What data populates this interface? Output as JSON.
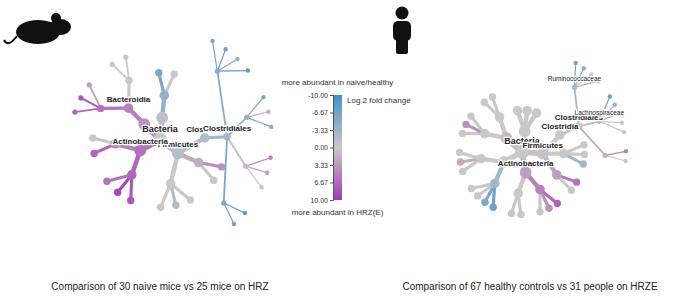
{
  "chart_data": {
    "type": "heat_tree",
    "color_scale": {
      "title": "Log 2 fold change",
      "range": [
        -10,
        10
      ],
      "ticks": [
        {
          "value": -10,
          "label": "-10.00"
        },
        {
          "value": -6.67,
          "label": "-6.67"
        },
        {
          "value": -3.33,
          "label": "-3.33"
        },
        {
          "value": 0,
          "label": "0.00"
        },
        {
          "value": 3.33,
          "label": "3.33"
        },
        {
          "value": 6.67,
          "label": "6.67"
        },
        {
          "value": 10,
          "label": "10.00"
        }
      ],
      "colors": [
        "#4a8fc6",
        "#c8c8c8",
        "#a33cb3"
      ],
      "low_label": "more abundant in naive/healthy",
      "high_label": "more abundant in HRZ(E)"
    },
    "panels": [
      {
        "caption": "Comparison of 30 naive mice vs 25 mice on HRZ",
        "tree": {
          "label": "Bacteria",
          "value": 0,
          "children": [
            {
              "label": "Firmicutes",
              "value": -1.5,
              "children": [
                {
                  "label": "Clostridia",
                  "value": -2,
                  "children": [
                    {
                      "label": "Clostridiales",
                      "value": -3,
                      "children": [
                        {
                          "value": -5,
                          "children": [
                            {
                              "value": -6
                            },
                            {
                              "value": -7
                            },
                            {
                              "value": -4
                            },
                            {
                              "value": -8
                            }
                          ]
                        },
                        {
                          "value": -4,
                          "children": [
                            {
                              "value": -6
                            },
                            {
                              "value": 2
                            },
                            {
                              "value": -5
                            }
                          ]
                        },
                        {
                          "value": 1,
                          "children": [
                            {
                              "value": 5
                            },
                            {
                              "value": 3
                            },
                            {
                              "value": 0
                            }
                          ]
                        },
                        {
                          "value": -6,
                          "children": [
                            {
                              "value": -8
                            },
                            {
                              "value": -7
                            }
                          ]
                        }
                      ]
                    }
                  ]
                },
                {
                  "value": 2,
                  "children": [
                    {
                      "value": 4
                    },
                    {
                      "value": 0
                    }
                  ]
                },
                {
                  "value": 0,
                  "children": [
                    {
                      "value": 0
                    },
                    {
                      "value": -2
                    },
                    {
                      "value": 0
                    }
                  ]
                }
              ]
            },
            {
              "label": "Actinobacteria",
              "value": 6,
              "children": [
                {
                  "value": 7,
                  "children": [
                    {
                      "value": 8
                    },
                    {
                      "value": 9
                    },
                    {
                      "value": 6
                    }
                  ]
                },
                {
                  "value": 5,
                  "children": [
                    {
                      "value": 7
                    },
                    {
                      "value": 0
                    }
                  ]
                }
              ]
            },
            {
              "value": 4,
              "children": [
                {
                  "label": "Bacteroidia",
                  "value": 5,
                  "children": [
                    {
                      "value": 6,
                      "children": [
                        {
                          "value": 7
                        },
                        {
                          "value": 8
                        },
                        {
                          "value": 3
                        }
                      ]
                    },
                    {
                      "value": 0,
                      "children": [
                        {
                          "value": 0
                        },
                        {
                          "value": 0
                        }
                      ]
                    }
                  ]
                }
              ]
            },
            {
              "value": -1,
              "children": [
                {
                  "value": -4,
                  "children": [
                    {
                      "value": -6
                    },
                    {
                      "value": 0
                    }
                  ]
                }
              ]
            }
          ]
        }
      },
      {
        "caption": "Comparison of 67 healthy controls vs 31 people on HRZE",
        "tree": {
          "label": "Bacteria",
          "value": 0,
          "children": [
            {
              "label": "Firmicutes",
              "value": 0.5,
              "children": [
                {
                  "label": "Clostridia",
                  "value": 0,
                  "children": [
                    {
                      "label": "Clostridiales",
                      "value": -1,
                      "children": [
                        {
                          "label": "Ruminococcaceae",
                          "value": -3,
                          "children": [
                            {
                              "value": -6
                            },
                            {
                              "value": -5
                            },
                            {
                              "value": 0
                            },
                            {
                              "value": 2
                            }
                          ]
                        },
                        {
                          "label": "Lachnospiraceae",
                          "value": -2,
                          "children": [
                            {
                              "value": -7
                            },
                            {
                              "value": -4
                            },
                            {
                              "value": 3
                            },
                            {
                              "value": 0
                            },
                            {
                              "value": 0
                            }
                          ]
                        },
                        {
                          "value": 2,
                          "children": [
                            {
                              "value": 5
                            },
                            {
                              "value": 0
                            }
                          ]
                        }
                      ]
                    }
                  ]
                },
                {
                  "value": 0,
                  "children": [
                    {
                      "value": 0
                    },
                    {
                      "value": 0
                    },
                    {
                      "value": -3
                    }
                  ]
                },
                {
                  "value": 3,
                  "children": [
                    {
                      "value": 6
                    },
                    {
                      "value": 0
                    }
                  ]
                }
              ]
            },
            {
              "label": "Actinobacteria",
              "value": 3,
              "children": [
                {
                  "value": 5,
                  "children": [
                    {
                      "value": 7
                    },
                    {
                      "value": 4
                    },
                    {
                      "value": 0
                    }
                  ]
                },
                {
                  "value": 0,
                  "children": [
                    {
                      "value": 0
                    },
                    {
                      "value": 0
                    }
                  ]
                }
              ]
            },
            {
              "value": 0,
              "children": [
                {
                  "value": -3,
                  "children": [
                    {
                      "value": -7
                    },
                    {
                      "value": -6
                    },
                    {
                      "value": 0
                    },
                    {
                      "value": 0
                    }
                  ]
                },
                {
                  "value": 0,
                  "children": [
                    {
                      "value": 0
                    },
                    {
                      "value": 2
                    },
                    {
                      "value": 0
                    }
                  ]
                }
              ]
            },
            {
              "value": 1,
              "children": [
                {
                  "value": 0,
                  "children": [
                    {
                      "value": 0
                    },
                    {
                      "value": 4
                    },
                    {
                      "value": 0
                    }
                  ]
                },
                {
                  "value": 0,
                  "children": [
                    {
                      "value": 0
                    },
                    {
                      "value": 0
                    }
                  ]
                }
              ]
            },
            {
              "value": 0,
              "children": [
                {
                  "value": 0
                },
                {
                  "value": 0
                },
                {
                  "value": 0
                }
              ]
            }
          ]
        }
      }
    ]
  }
}
